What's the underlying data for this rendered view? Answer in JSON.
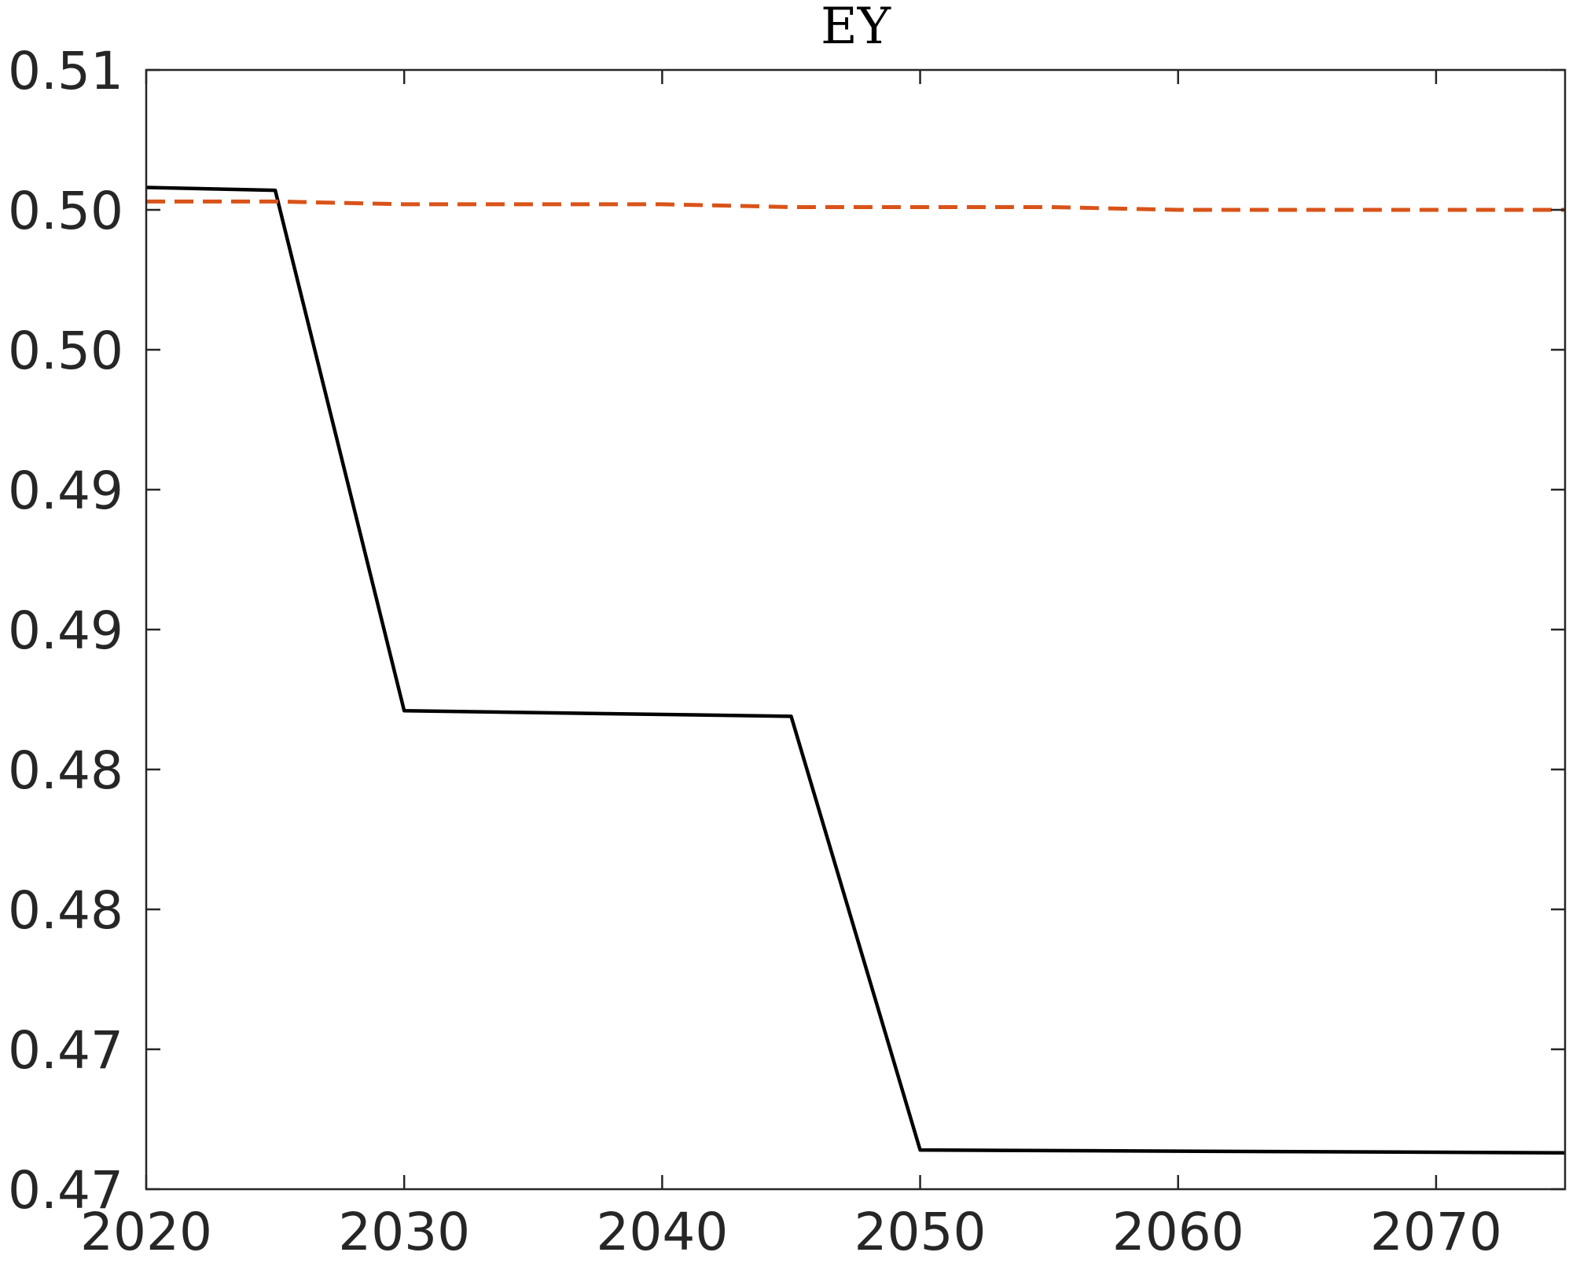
{
  "chart_data": {
    "type": "line",
    "title": "EY",
    "xlabel": "",
    "ylabel": "",
    "xlim": [
      2020,
      2075
    ],
    "ylim": [
      0.467,
      0.507
    ],
    "grid": false,
    "xticks": [
      2020,
      2030,
      2040,
      2050,
      2060,
      2070
    ],
    "xtick_labels": [
      "2020",
      "2030",
      "2040",
      "2050",
      "2060",
      "2070"
    ],
    "yticks": [
      0.467,
      0.472,
      0.477,
      0.482,
      0.487,
      0.492,
      0.497,
      0.502,
      0.507
    ],
    "ytick_labels": [
      "0.47",
      "0.47",
      "0.48",
      "0.48",
      "0.49",
      "0.49",
      "0.50",
      "0.50",
      "0.51"
    ],
    "series": [
      {
        "style": "solid",
        "color": "#000000",
        "x": [
          2020,
          2025,
          2030,
          2045,
          2050,
          2075
        ],
        "y": [
          0.5028,
          0.5027,
          0.4841,
          0.4839,
          0.4684,
          0.4683
        ]
      },
      {
        "style": "dashed",
        "color": "#D95319",
        "x": [
          2020,
          2025,
          2030,
          2035,
          2040,
          2045,
          2050,
          2055,
          2060,
          2065,
          2070,
          2075
        ],
        "y": [
          0.5023,
          0.5023,
          0.5022,
          0.5022,
          0.5022,
          0.5021,
          0.5021,
          0.5021,
          0.502,
          0.502,
          0.502,
          0.502
        ]
      }
    ]
  }
}
